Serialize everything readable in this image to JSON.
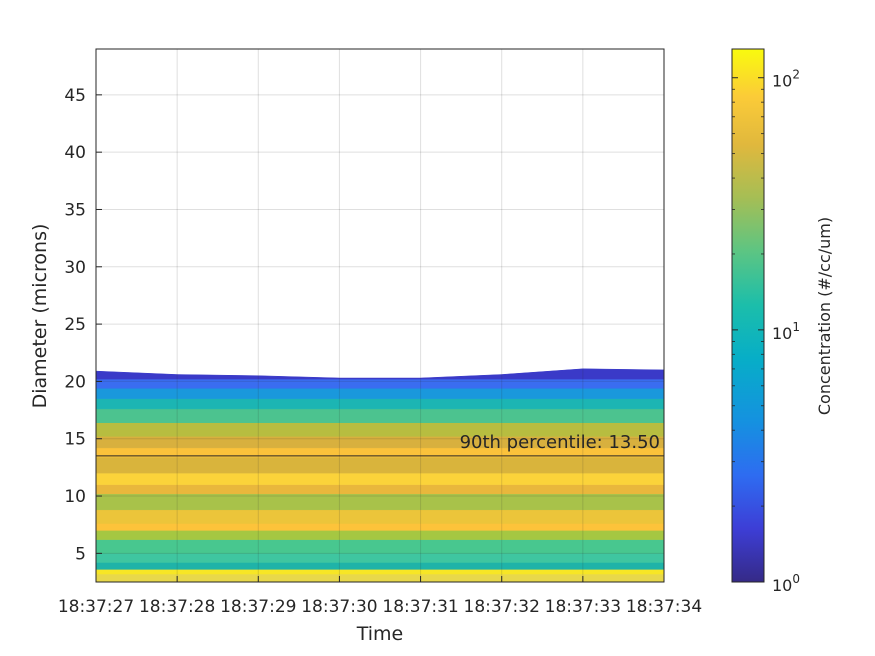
{
  "chart_data": {
    "type": "heatmap",
    "subtype": "filled-contour",
    "xlabel": "Time",
    "ylabel": "Diameter (microns)",
    "x_ticks": [
      "18:37:27",
      "18:37:28",
      "18:37:29",
      "18:37:30",
      "18:37:31",
      "18:37:32",
      "18:37:33",
      "18:37:34"
    ],
    "y_ticks": [
      5,
      10,
      15,
      20,
      25,
      30,
      35,
      40,
      45
    ],
    "ylim": [
      2.5,
      49
    ],
    "grid": true,
    "colorbar": {
      "label": "Concentration (#/cc/um)",
      "scale": "log",
      "range": [
        1,
        130
      ],
      "colormap": "parula",
      "ticks": [
        {
          "value": 1,
          "base": "10",
          "exp": "0"
        },
        {
          "value": 10,
          "base": "10",
          "exp": "1"
        },
        {
          "value": 100,
          "base": "10",
          "exp": "2"
        }
      ]
    },
    "percentile_line": {
      "value": 13.5,
      "label": "90th percentile: 13.50"
    },
    "max_diameter_edge": [
      20.9,
      20.6,
      20.5,
      20.3,
      20.3,
      20.6,
      21.1,
      21.0
    ],
    "bands": [
      {
        "from": 2.5,
        "to": 3.2,
        "color": "#e8d84a"
      },
      {
        "from": 3.2,
        "to": 3.6,
        "color": "#f7e625"
      },
      {
        "from": 3.6,
        "to": 4.2,
        "color": "#1fb3a8"
      },
      {
        "from": 4.2,
        "to": 5.0,
        "color": "#3fc6a0"
      },
      {
        "from": 5.0,
        "to": 6.2,
        "color": "#48c78f"
      },
      {
        "from": 6.2,
        "to": 7.0,
        "color": "#a5c742"
      },
      {
        "from": 7.0,
        "to": 7.6,
        "color": "#fdc33a"
      },
      {
        "from": 7.6,
        "to": 8.8,
        "color": "#ecc53a"
      },
      {
        "from": 8.8,
        "to": 10.2,
        "color": "#a8c24a"
      },
      {
        "from": 10.2,
        "to": 11.0,
        "color": "#e9b73c"
      },
      {
        "from": 11.0,
        "to": 12.0,
        "color": "#fbd33a"
      },
      {
        "from": 12.0,
        "to": 13.4,
        "color": "#d9b43c"
      },
      {
        "from": 13.4,
        "to": 14.2,
        "color": "#fbc23b"
      },
      {
        "from": 14.2,
        "to": 15.2,
        "color": "#d8b03e"
      },
      {
        "from": 15.2,
        "to": 16.4,
        "color": "#b7bd40"
      },
      {
        "from": 16.4,
        "to": 17.6,
        "color": "#4cc38f"
      },
      {
        "from": 17.6,
        "to": 18.5,
        "color": "#1cb5b3"
      },
      {
        "from": 18.5,
        "to": 19.4,
        "color": "#1a98dc"
      },
      {
        "from": 19.4,
        "to": 20.2,
        "color": "#3a6df0"
      },
      {
        "from": 20.2,
        "to": 21.2,
        "color": "#3a3ac8"
      }
    ]
  }
}
